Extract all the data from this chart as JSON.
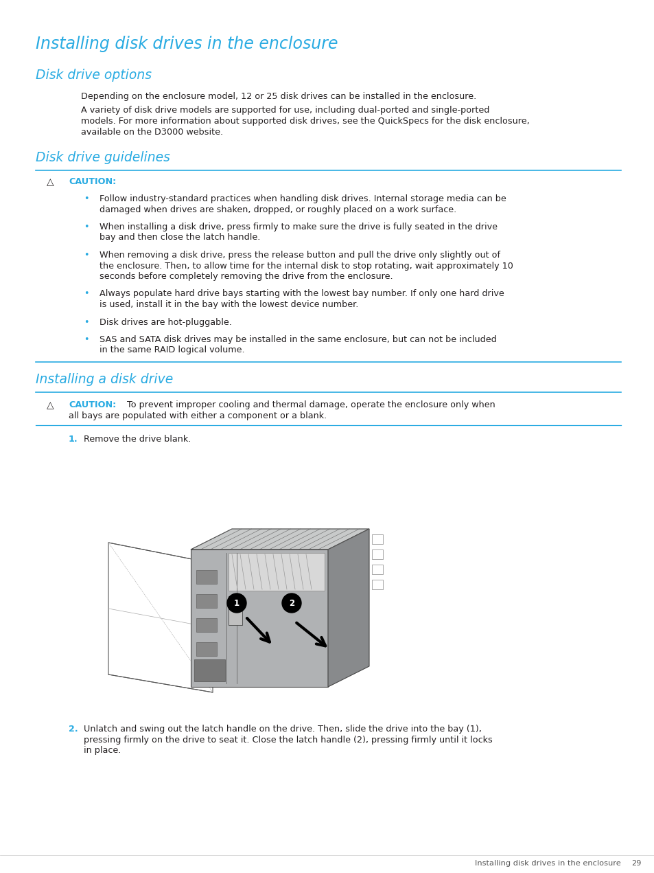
{
  "bg_color": "#ffffff",
  "cyan_color": "#29ABE2",
  "black_color": "#231F20",
  "gray_body": "#b0b2b4",
  "gray_top": "#c8caca",
  "gray_dark": "#888a8c",
  "gray_light": "#d4d6d8",
  "title_main": "Installing disk drives in the enclosure",
  "title_options": "Disk drive options",
  "title_guidelines": "Disk drive guidelines",
  "title_installing": "Installing a disk drive",
  "para1": "Depending on the enclosure model, 12 or 25 disk drives can be installed in the enclosure.",
  "para2_l1": "A variety of disk drive models are supported for use, including dual-ported and single-ported",
  "para2_l2": "models. For more information about supported disk drives, see the QuickSpecs for the disk enclosure,",
  "para2_l3": "available on the D3000 website.",
  "caution_label": "CAUTION:",
  "bullet1_l1": "Follow industry-standard practices when handling disk drives. Internal storage media can be",
  "bullet1_l2": "damaged when drives are shaken, dropped, or roughly placed on a work surface.",
  "bullet2_l1": "When installing a disk drive, press firmly to make sure the drive is fully seated in the drive",
  "bullet2_l2": "bay and then close the latch handle.",
  "bullet3_l1": "When removing a disk drive, press the release button and pull the drive only slightly out of",
  "bullet3_l2": "the enclosure. Then, to allow time for the internal disk to stop rotating, wait approximately 10",
  "bullet3_l3": "seconds before completely removing the drive from the enclosure.",
  "bullet4_l1": "Always populate hard drive bays starting with the lowest bay number. If only one hard drive",
  "bullet4_l2": "is used, install it in the bay with the lowest device number.",
  "bullet5": "Disk drives are hot-pluggable.",
  "bullet6_l1": "SAS and SATA disk drives may be installed in the same enclosure, but can not be included",
  "bullet6_l2": "in the same RAID logical volume.",
  "caution2_word": "CAUTION:",
  "caution2_l1": "To prevent improper cooling and thermal damage, operate the enclosure only when",
  "caution2_l2": "all bays are populated with either a component or a blank.",
  "step1_num": "1.",
  "step1_text": "Remove the drive blank.",
  "step2_num": "2.",
  "step2_l1": "Unlatch and swing out the latch handle on the drive. Then, slide the drive into the bay (1),",
  "step2_l2": "pressing firmly on the drive to seat it. Close the latch handle (2), pressing firmly until it locks",
  "step2_l3": "in place.",
  "footer_text": "Installing disk drives in the enclosure",
  "footer_page": "29"
}
